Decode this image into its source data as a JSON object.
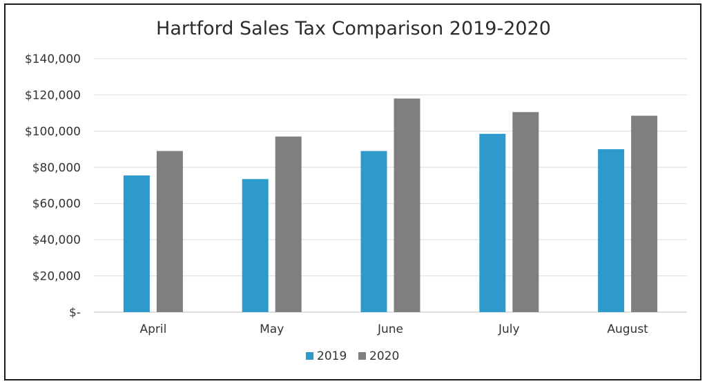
{
  "chart_data": {
    "type": "bar",
    "title": "Hartford Sales Tax Comparison 2019-2020",
    "categories": [
      "April",
      "May",
      "June",
      "July",
      "August"
    ],
    "series": [
      {
        "name": "2019",
        "color": "#2e9acb",
        "values": [
          75500,
          73500,
          89000,
          98500,
          90000
        ]
      },
      {
        "name": "2020",
        "color": "#7f7f7f",
        "values": [
          89000,
          97000,
          118000,
          110500,
          108500
        ]
      }
    ],
    "ylim": [
      0,
      140000
    ],
    "yticks": [
      0,
      20000,
      40000,
      60000,
      80000,
      100000,
      120000,
      140000
    ],
    "ytick_labels": [
      "$-",
      "$20,000",
      "$40,000",
      "$60,000",
      "$80,000",
      "$100,000",
      "$120,000",
      "$140,000"
    ],
    "grid": true,
    "legend_position": "bottom"
  }
}
